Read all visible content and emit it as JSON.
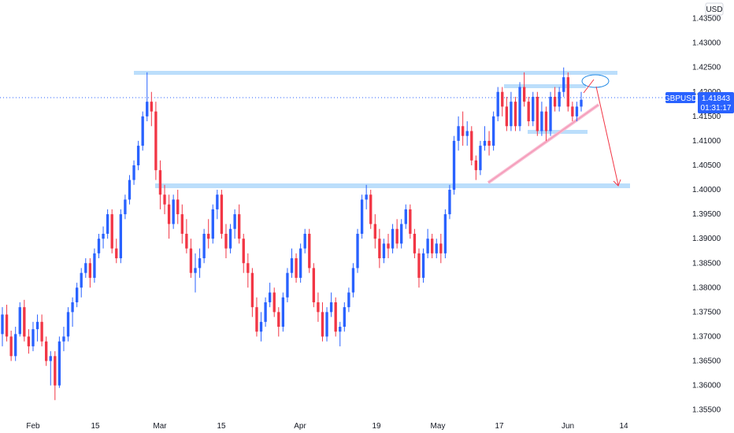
{
  "chart_data": {
    "type": "candlestick",
    "symbol": "GBPUSD",
    "currency": "USD",
    "last_price": "1.41843",
    "countdown": "01:31:17",
    "y_range": [
      1.3535,
      1.4375
    ],
    "y_ticks": [
      "1.43500",
      "1.43000",
      "1.42500",
      "1.42000",
      "1.41500",
      "1.41000",
      "1.40500",
      "1.40000",
      "1.39500",
      "1.39000",
      "1.38500",
      "1.38000",
      "1.37500",
      "1.37000",
      "1.36500",
      "1.36000",
      "1.35500"
    ],
    "x_labels": [
      "Feb",
      "15",
      "Mar",
      "15",
      "Apr",
      "19",
      "May",
      "17",
      "Jun",
      "14"
    ],
    "colors": {
      "up": "#2962ff",
      "down": "#f23645",
      "zone": "#bbdefb",
      "price_line": "#2962ff",
      "annotation": "#f23645",
      "ellipse": "#1e88e5"
    },
    "candles": [
      [
        1.3705,
        1.376,
        1.368,
        1.3745
      ],
      [
        1.3745,
        1.3765,
        1.369,
        1.37
      ],
      [
        1.37,
        1.3712,
        1.365,
        1.366
      ],
      [
        1.366,
        1.372,
        1.365,
        1.3705
      ],
      [
        1.3705,
        1.377,
        1.37,
        1.376
      ],
      [
        1.376,
        1.3775,
        1.369,
        1.37
      ],
      [
        1.37,
        1.3715,
        1.3665,
        1.368
      ],
      [
        1.368,
        1.373,
        1.367,
        1.3715
      ],
      [
        1.3715,
        1.3745,
        1.369,
        1.373
      ],
      [
        1.373,
        1.3745,
        1.368,
        1.369
      ],
      [
        1.369,
        1.37,
        1.364,
        1.365
      ],
      [
        1.365,
        1.367,
        1.36,
        1.366
      ],
      [
        1.366,
        1.367,
        1.357,
        1.36
      ],
      [
        1.36,
        1.37,
        1.3595,
        1.369
      ],
      [
        1.369,
        1.372,
        1.367,
        1.37
      ],
      [
        1.37,
        1.376,
        1.369,
        1.375
      ],
      [
        1.375,
        1.378,
        1.372,
        1.377
      ],
      [
        1.377,
        1.381,
        1.376,
        1.38
      ],
      [
        1.38,
        1.384,
        1.378,
        1.383
      ],
      [
        1.383,
        1.386,
        1.382,
        1.385
      ],
      [
        1.385,
        1.386,
        1.38,
        1.382
      ],
      [
        1.382,
        1.388,
        1.381,
        1.387
      ],
      [
        1.387,
        1.391,
        1.386,
        1.39
      ],
      [
        1.39,
        1.3925,
        1.388,
        1.391
      ],
      [
        1.391,
        1.396,
        1.39,
        1.395
      ],
      [
        1.395,
        1.396,
        1.387,
        1.388
      ],
      [
        1.388,
        1.39,
        1.385,
        1.386
      ],
      [
        1.386,
        1.396,
        1.385,
        1.395
      ],
      [
        1.395,
        1.399,
        1.394,
        1.398
      ],
      [
        1.398,
        1.403,
        1.397,
        1.402
      ],
      [
        1.402,
        1.406,
        1.401,
        1.405
      ],
      [
        1.405,
        1.41,
        1.404,
        1.409
      ],
      [
        1.409,
        1.416,
        1.408,
        1.415
      ],
      [
        1.415,
        1.424,
        1.414,
        1.418
      ],
      [
        1.418,
        1.42,
        1.413,
        1.416
      ],
      [
        1.416,
        1.418,
        1.402,
        1.404
      ],
      [
        1.404,
        1.406,
        1.396,
        1.399
      ],
      [
        1.399,
        1.401,
        1.395,
        1.397
      ],
      [
        1.397,
        1.399,
        1.39,
        1.393
      ],
      [
        1.393,
        1.399,
        1.392,
        1.398
      ],
      [
        1.398,
        1.4,
        1.393,
        1.395
      ],
      [
        1.395,
        1.397,
        1.389,
        1.391
      ],
      [
        1.391,
        1.394,
        1.387,
        1.388
      ],
      [
        1.388,
        1.39,
        1.382,
        1.383
      ],
      [
        1.383,
        1.387,
        1.379,
        1.384
      ],
      [
        1.384,
        1.388,
        1.382,
        1.386
      ],
      [
        1.386,
        1.392,
        1.385,
        1.391
      ],
      [
        1.391,
        1.394,
        1.388,
        1.39
      ],
      [
        1.39,
        1.397,
        1.389,
        1.396
      ],
      [
        1.396,
        1.4,
        1.394,
        1.399
      ],
      [
        1.399,
        1.4,
        1.39,
        1.391
      ],
      [
        1.391,
        1.393,
        1.386,
        1.388
      ],
      [
        1.388,
        1.393,
        1.387,
        1.392
      ],
      [
        1.392,
        1.396,
        1.39,
        1.395
      ],
      [
        1.395,
        1.397,
        1.389,
        1.39
      ],
      [
        1.39,
        1.391,
        1.383,
        1.385
      ],
      [
        1.385,
        1.387,
        1.38,
        1.383
      ],
      [
        1.383,
        1.384,
        1.374,
        1.376
      ],
      [
        1.376,
        1.378,
        1.37,
        1.371
      ],
      [
        1.371,
        1.375,
        1.369,
        1.373
      ],
      [
        1.373,
        1.378,
        1.372,
        1.377
      ],
      [
        1.377,
        1.381,
        1.376,
        1.379
      ],
      [
        1.379,
        1.38,
        1.374,
        1.375
      ],
      [
        1.375,
        1.376,
        1.37,
        1.372
      ],
      [
        1.372,
        1.379,
        1.371,
        1.378
      ],
      [
        1.378,
        1.384,
        1.377,
        1.383
      ],
      [
        1.383,
        1.388,
        1.382,
        1.386
      ],
      [
        1.386,
        1.387,
        1.381,
        1.382
      ],
      [
        1.382,
        1.389,
        1.381,
        1.388
      ],
      [
        1.388,
        1.392,
        1.387,
        1.391
      ],
      [
        1.391,
        1.392,
        1.383,
        1.384
      ],
      [
        1.384,
        1.385,
        1.376,
        1.377
      ],
      [
        1.377,
        1.379,
        1.373,
        1.375
      ],
      [
        1.375,
        1.377,
        1.369,
        1.37
      ],
      [
        1.37,
        1.376,
        1.369,
        1.375
      ],
      [
        1.375,
        1.379,
        1.374,
        1.377
      ],
      [
        1.377,
        1.378,
        1.37,
        1.371
      ],
      [
        1.371,
        1.373,
        1.368,
        1.372
      ],
      [
        1.372,
        1.377,
        1.371,
        1.376
      ],
      [
        1.376,
        1.38,
        1.375,
        1.379
      ],
      [
        1.379,
        1.385,
        1.378,
        1.384
      ],
      [
        1.384,
        1.392,
        1.383,
        1.391
      ],
      [
        1.391,
        1.399,
        1.39,
        1.398
      ],
      [
        1.398,
        1.401,
        1.396,
        1.399
      ],
      [
        1.399,
        1.4,
        1.392,
        1.393
      ],
      [
        1.393,
        1.395,
        1.388,
        1.39
      ],
      [
        1.39,
        1.392,
        1.384,
        1.386
      ],
      [
        1.386,
        1.39,
        1.385,
        1.389
      ],
      [
        1.389,
        1.391,
        1.386,
        1.388
      ],
      [
        1.388,
        1.393,
        1.387,
        1.392
      ],
      [
        1.392,
        1.394,
        1.388,
        1.389
      ],
      [
        1.389,
        1.394,
        1.388,
        1.393
      ],
      [
        1.393,
        1.397,
        1.392,
        1.396
      ],
      [
        1.396,
        1.397,
        1.39,
        1.391
      ],
      [
        1.391,
        1.392,
        1.386,
        1.387
      ],
      [
        1.387,
        1.388,
        1.38,
        1.382
      ],
      [
        1.382,
        1.388,
        1.381,
        1.387
      ],
      [
        1.387,
        1.392,
        1.386,
        1.39
      ],
      [
        1.39,
        1.391,
        1.386,
        1.387
      ],
      [
        1.387,
        1.39,
        1.386,
        1.389
      ],
      [
        1.389,
        1.391,
        1.385,
        1.387
      ],
      [
        1.387,
        1.396,
        1.386,
        1.395
      ],
      [
        1.395,
        1.401,
        1.394,
        1.4
      ],
      [
        1.4,
        1.411,
        1.399,
        1.41
      ],
      [
        1.41,
        1.415,
        1.408,
        1.413
      ],
      [
        1.413,
        1.416,
        1.409,
        1.411
      ],
      [
        1.411,
        1.414,
        1.409,
        1.412
      ],
      [
        1.412,
        1.413,
        1.405,
        1.406
      ],
      [
        1.406,
        1.407,
        1.402,
        1.404
      ],
      [
        1.404,
        1.41,
        1.403,
        1.409
      ],
      [
        1.409,
        1.413,
        1.408,
        1.41
      ],
      [
        1.41,
        1.412,
        1.407,
        1.409
      ],
      [
        1.409,
        1.416,
        1.408,
        1.415
      ],
      [
        1.415,
        1.421,
        1.414,
        1.42
      ],
      [
        1.42,
        1.421,
        1.415,
        1.417
      ],
      [
        1.417,
        1.419,
        1.412,
        1.413
      ],
      [
        1.413,
        1.42,
        1.412,
        1.418
      ],
      [
        1.418,
        1.419,
        1.412,
        1.413
      ],
      [
        1.413,
        1.422,
        1.412,
        1.421
      ],
      [
        1.421,
        1.424,
        1.417,
        1.418
      ],
      [
        1.418,
        1.419,
        1.413,
        1.414
      ],
      [
        1.414,
        1.42,
        1.413,
        1.419
      ],
      [
        1.419,
        1.42,
        1.411,
        1.412
      ],
      [
        1.412,
        1.418,
        1.411,
        1.416
      ],
      [
        1.416,
        1.417,
        1.41,
        1.412
      ],
      [
        1.412,
        1.42,
        1.411,
        1.419
      ],
      [
        1.419,
        1.421,
        1.416,
        1.417
      ],
      [
        1.417,
        1.421,
        1.416,
        1.42
      ],
      [
        1.42,
        1.425,
        1.419,
        1.423
      ],
      [
        1.423,
        1.424,
        1.416,
        1.417
      ],
      [
        1.417,
        1.418,
        1.414,
        1.415
      ],
      [
        1.415,
        1.418,
        1.414,
        1.417
      ],
      [
        1.417,
        1.42,
        1.416,
        1.4184
      ]
    ]
  }
}
